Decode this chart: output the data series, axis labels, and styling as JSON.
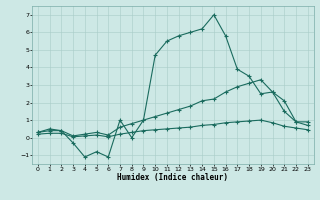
{
  "xlabel": "Humidex (Indice chaleur)",
  "xlim": [
    -0.5,
    23.5
  ],
  "ylim": [
    -1.5,
    7.5
  ],
  "xticks": [
    0,
    1,
    2,
    3,
    4,
    5,
    6,
    7,
    8,
    9,
    10,
    11,
    12,
    13,
    14,
    15,
    16,
    17,
    18,
    19,
    20,
    21,
    22,
    23
  ],
  "yticks": [
    -1,
    0,
    1,
    2,
    3,
    4,
    5,
    6,
    7
  ],
  "bg_color": "#cde8e5",
  "line_color": "#1a6b5e",
  "line1_x": [
    0,
    1,
    2,
    3,
    4,
    5,
    6,
    7,
    8,
    9,
    10,
    11,
    12,
    13,
    14,
    15,
    16,
    17,
    18,
    19,
    20,
    21,
    22,
    23
  ],
  "line1_y": [
    0.3,
    0.5,
    0.4,
    -0.3,
    -1.1,
    -0.8,
    -1.1,
    1.0,
    0.0,
    1.0,
    4.7,
    5.5,
    5.8,
    6.0,
    6.2,
    7.0,
    5.8,
    3.9,
    3.5,
    2.5,
    2.6,
    2.1,
    0.9,
    0.9
  ],
  "line2_x": [
    0,
    1,
    2,
    3,
    4,
    5,
    6,
    7,
    8,
    9,
    10,
    11,
    12,
    13,
    14,
    15,
    16,
    17,
    18,
    19,
    20,
    21,
    22,
    23
  ],
  "line2_y": [
    0.3,
    0.4,
    0.4,
    0.1,
    0.2,
    0.3,
    0.15,
    0.6,
    0.8,
    1.0,
    1.2,
    1.4,
    1.6,
    1.8,
    2.1,
    2.2,
    2.6,
    2.9,
    3.1,
    3.3,
    2.6,
    1.5,
    0.9,
    0.7
  ],
  "line3_x": [
    0,
    1,
    2,
    3,
    4,
    5,
    6,
    7,
    8,
    9,
    10,
    11,
    12,
    13,
    14,
    15,
    16,
    17,
    18,
    19,
    20,
    21,
    22,
    23
  ],
  "line3_y": [
    0.2,
    0.25,
    0.25,
    0.05,
    0.1,
    0.15,
    0.05,
    0.2,
    0.3,
    0.4,
    0.45,
    0.5,
    0.55,
    0.6,
    0.7,
    0.75,
    0.85,
    0.9,
    0.95,
    1.0,
    0.85,
    0.65,
    0.55,
    0.45
  ]
}
